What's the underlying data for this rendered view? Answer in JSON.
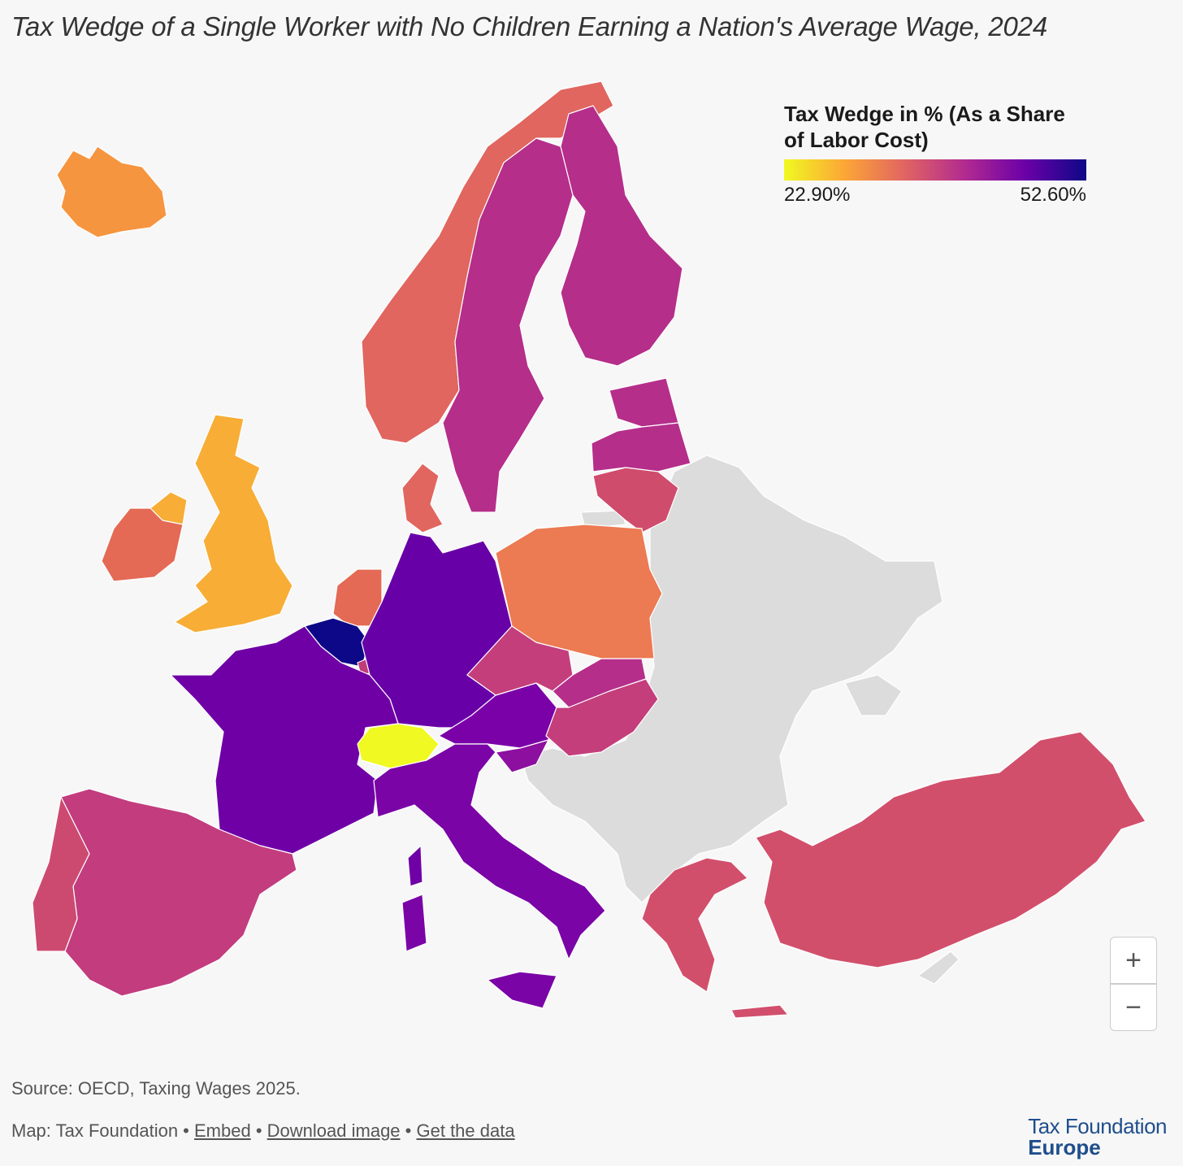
{
  "title": "Tax Wedge of a Single Worker with No Children Earning a Nation's Average Wage, 2024",
  "legend": {
    "title": "Tax Wedge in % (As a Share of Labor Cost)",
    "min_label": "22.90%",
    "max_label": "52.60%",
    "min": 22.9,
    "max": 52.6,
    "colors": [
      "#f0f921",
      "#fca636",
      "#e16462",
      "#b12a90",
      "#6a00a8",
      "#0d0887"
    ]
  },
  "zoom": {
    "in_label": "+",
    "out_label": "−"
  },
  "source": "Source: OECD, Taxing Wages 2025.",
  "footer": {
    "prefix": "Map: Tax Foundation •",
    "embed": "Embed",
    "sep1": "•",
    "download": "Download image",
    "sep2": "•",
    "get_data": "Get the data"
  },
  "brand": {
    "line1": "Tax Foundation",
    "line2": "Europe"
  },
  "countries": {
    "iceland": {
      "color": "#f6953f"
    },
    "norway": {
      "color": "#e0665f"
    },
    "sweden": {
      "color": "#b52e8a"
    },
    "finland": {
      "color": "#b52e8a"
    },
    "estonia": {
      "color": "#b52e8a"
    },
    "latvia": {
      "color": "#b52e8a"
    },
    "lithuania": {
      "color": "#cf4c6c"
    },
    "denmark": {
      "color": "#e0665f"
    },
    "united_kingdom": {
      "color": "#f7ad36"
    },
    "ireland": {
      "color": "#e46a55"
    },
    "netherlands": {
      "color": "#e46a55"
    },
    "belgium": {
      "color": "#0d0887"
    },
    "luxembourg": {
      "color": "#c03d7a"
    },
    "germany": {
      "color": "#6800a8"
    },
    "france": {
      "color": "#6f00a6"
    },
    "switzerland": {
      "color": "#f0f921"
    },
    "austria": {
      "color": "#7a00a8"
    },
    "italy": {
      "color": "#7a04a6"
    },
    "slovenia": {
      "color": "#8c0fa0"
    },
    "czechia": {
      "color": "#c43e7c"
    },
    "slovakia": {
      "color": "#b52e8a"
    },
    "hungary": {
      "color": "#c43e7c"
    },
    "poland": {
      "color": "#ec7a52"
    },
    "spain": {
      "color": "#c23c7e"
    },
    "portugal": {
      "color": "#cc4a70"
    },
    "greece": {
      "color": "#d24f6c"
    },
    "turkey": {
      "color": "#d24f6c"
    }
  }
}
